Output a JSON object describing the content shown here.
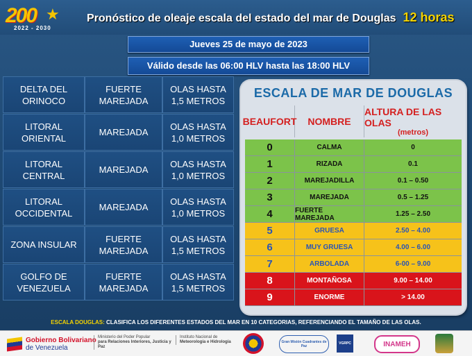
{
  "header": {
    "logo_text": "200",
    "logo_years": "2022 - 2030",
    "title": "Pronóstico de oleaje escala del estado del mar de Douglas",
    "hours": "12 horas"
  },
  "date_banner": "Jueves 25 de mayo de 2023",
  "valid_banner": "Válido desde las 06:00 HLV hasta las 18:00 HLV",
  "regions": [
    {
      "zone": [
        "DELTA DEL",
        "ORINOCO"
      ],
      "state": [
        "FUERTE",
        "MAREJADA"
      ],
      "waves": [
        "OLAS HASTA",
        "1,5 METROS"
      ]
    },
    {
      "zone": [
        "LITORAL",
        "ORIENTAL"
      ],
      "state": [
        "MAREJADA"
      ],
      "waves": [
        "OLAS HASTA",
        "1,0 METROS"
      ]
    },
    {
      "zone": [
        "LITORAL",
        "CENTRAL"
      ],
      "state": [
        "MAREJADA"
      ],
      "waves": [
        "OLAS HASTA",
        "1,0 METROS"
      ]
    },
    {
      "zone": [
        "LITORAL",
        "OCCIDENTAL"
      ],
      "state": [
        "MAREJADA"
      ],
      "waves": [
        "OLAS HASTA",
        "1,0 METROS"
      ]
    },
    {
      "zone": [
        "ZONA INSULAR"
      ],
      "state": [
        "FUERTE",
        "MAREJADA"
      ],
      "waves": [
        "OLAS HASTA",
        "1,5 METROS"
      ]
    },
    {
      "zone": [
        "GOLFO DE",
        "VENEZUELA"
      ],
      "state": [
        "FUERTE",
        "MAREJADA"
      ],
      "waves": [
        "OLAS HASTA",
        "1,5 METROS"
      ]
    }
  ],
  "scale": {
    "title": "ESCALA DE MAR DE DOUGLAS",
    "headers": {
      "beaufort": "BEAUFORT",
      "name": "NOMBRE",
      "height": "ALTURA DE LAS OLAS",
      "unit": "(metros)"
    },
    "rows": [
      {
        "num": "0",
        "name": "CALMA",
        "height": "0",
        "bg": "#7cc34a",
        "fg": "#111111"
      },
      {
        "num": "1",
        "name": "RIZADA",
        "height": "0.1",
        "bg": "#7cc34a",
        "fg": "#111111"
      },
      {
        "num": "2",
        "name": "MAREJADILLA",
        "height": "0.1 – 0.50",
        "bg": "#7cc34a",
        "fg": "#111111"
      },
      {
        "num": "3",
        "name": "MAREJADA",
        "height": "0.5 – 1.25",
        "bg": "#7cc34a",
        "fg": "#111111"
      },
      {
        "num": "4",
        "name": "FUERTE MAREJADA",
        "height": "1.25 – 2.50",
        "bg": "#7cc34a",
        "fg": "#111111"
      },
      {
        "num": "5",
        "name": "GRUESA",
        "height": "2.50 – 4.00",
        "bg": "#f6c21a",
        "fg": "#2a55b5"
      },
      {
        "num": "6",
        "name": "MUY GRUESA",
        "height": "4.00 – 6.00",
        "bg": "#f6c21a",
        "fg": "#2a55b5"
      },
      {
        "num": "7",
        "name": "ARBOLADA",
        "height": "6-00 – 9.00",
        "bg": "#f6c21a",
        "fg": "#2a55b5"
      },
      {
        "num": "8",
        "name": "MONTAÑOSA",
        "height": "9.00 – 14.00",
        "bg": "#d9141b",
        "fg": "#ffffff"
      },
      {
        "num": "9",
        "name": "ENORME",
        "height": "> 14.00",
        "bg": "#d9141b",
        "fg": "#ffffff"
      }
    ]
  },
  "footnote": {
    "lead": "ESCALA DOUGLAS:",
    "text": "CLASIFICA LOS DIFERENTES ESTADOS DEL MAR EN 10 CATEGORIAS, REFERENCIANDO EL TAMAÑO DE LAS OLAS."
  },
  "footer": {
    "gob_line1": "Gobierno Bolivariano",
    "gob_line2": "de Venezuela",
    "ministry_line1": "Ministerio del Poder Popular",
    "ministry_line2": "para Relaciones Interiores, Justicia y Paz",
    "institute_line1": "Instituto Nacional de",
    "institute_line2": "Meteorología e Hidrología",
    "gp_text": "Gran Misión Cuadrantes de Paz",
    "vg_text": "VGRPC",
    "inameh_text": "INAMEH"
  },
  "colors": {
    "accent": "#f5d400",
    "background": "#1f4a75",
    "banner": "#1e5fb4"
  }
}
